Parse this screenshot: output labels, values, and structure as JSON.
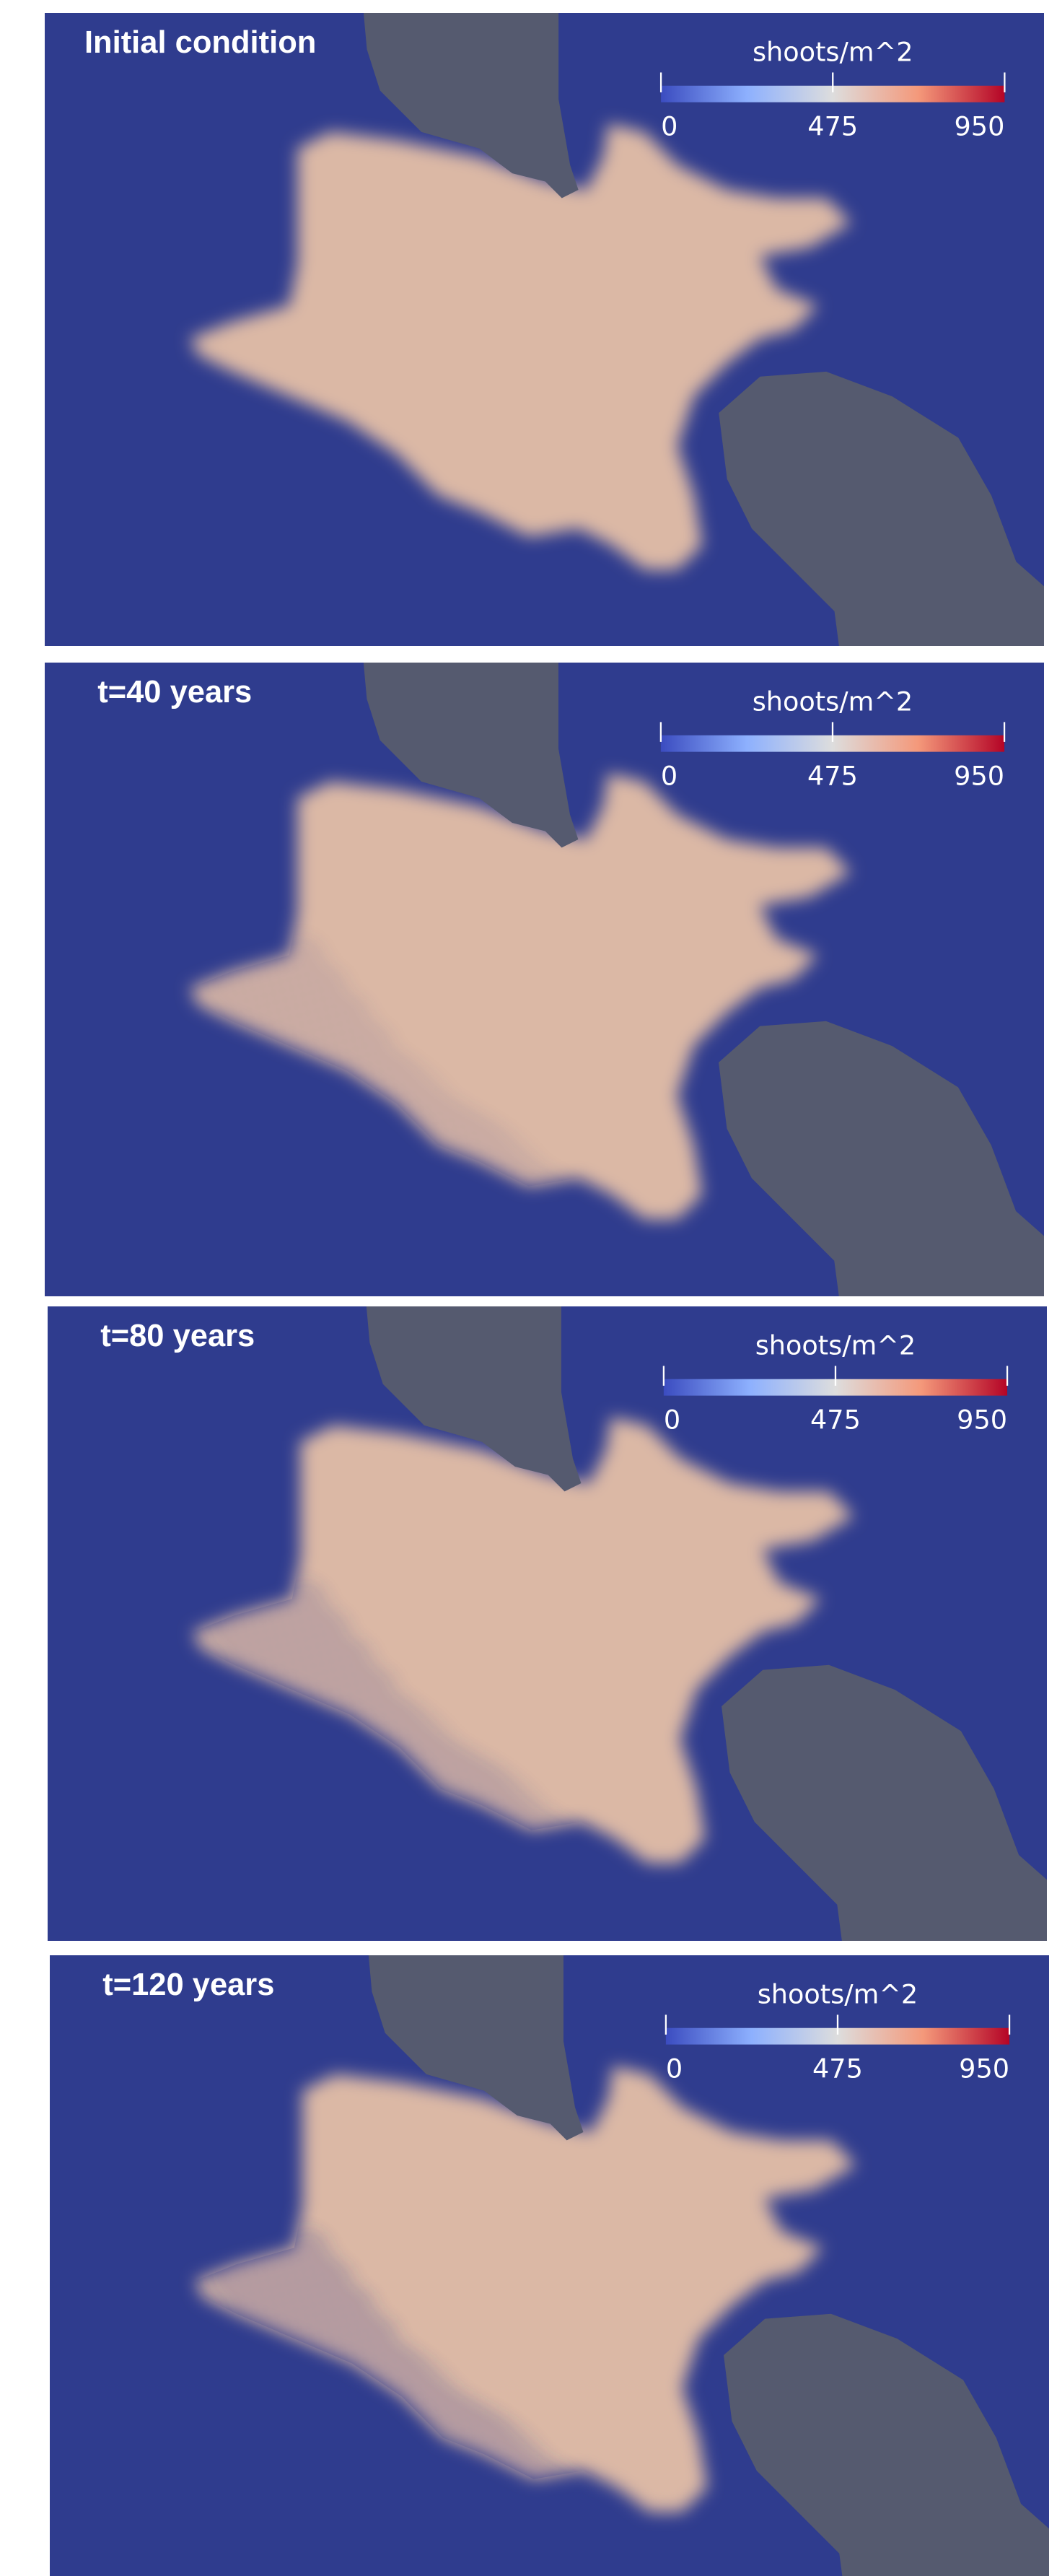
{
  "panels": [
    {
      "title": "Initial condition"
    },
    {
      "title": "t=40 years"
    },
    {
      "title": "t=80 years"
    },
    {
      "title": "t=120 years"
    }
  ],
  "colorbar": {
    "label": "shoots/m^2",
    "range": [
      0,
      950
    ],
    "ticks": [
      0,
      475,
      950
    ]
  }
}
